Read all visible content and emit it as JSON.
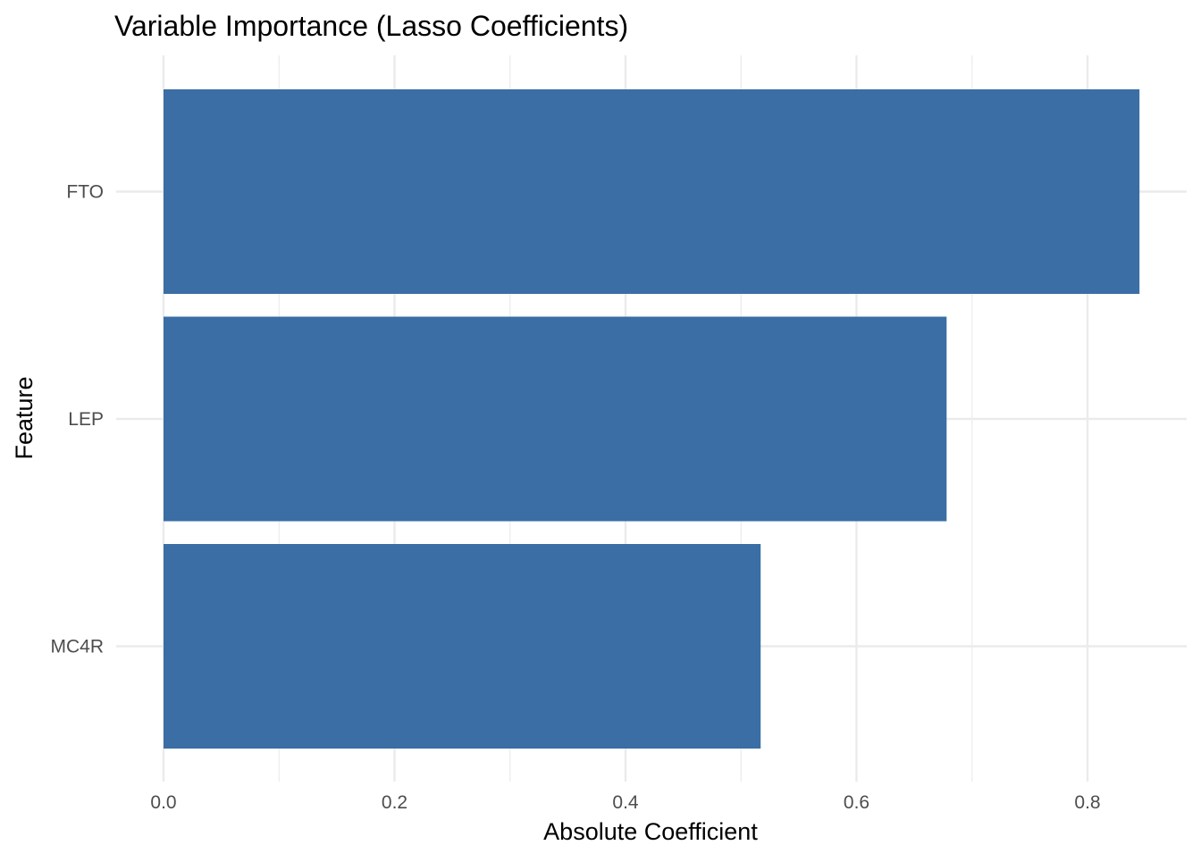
{
  "chart_data": {
    "type": "bar",
    "orientation": "horizontal",
    "title": "Variable Importance (Lasso Coefficients)",
    "xlabel": "Absolute Coefficient",
    "ylabel": "Feature",
    "categories": [
      "FTO",
      "LEP",
      "MC4R"
    ],
    "values": [
      0.845,
      0.678,
      0.517
    ],
    "xlim": [
      0,
      0.88
    ],
    "x_ticks": [
      "0.0",
      "0.2",
      "0.4",
      "0.6",
      "0.8"
    ],
    "bar_color": "#3A6EA5",
    "grid": true,
    "legend": "none"
  }
}
